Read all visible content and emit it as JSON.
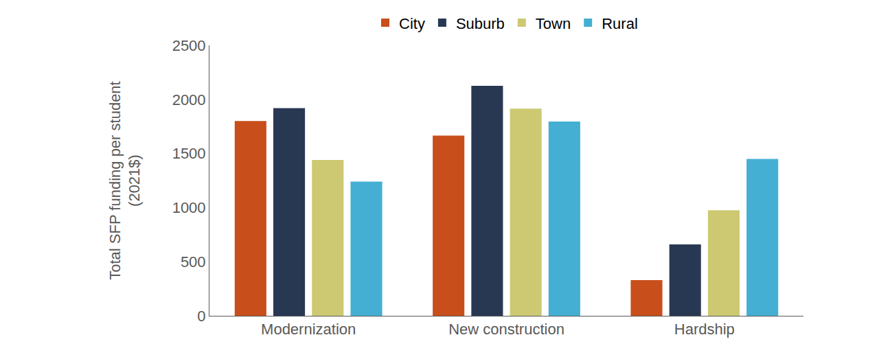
{
  "chart_data": {
    "type": "bar",
    "ylabel": "Total SFP funding per student (2021$)",
    "categories": [
      "Modernization",
      "New construction",
      "Hardship"
    ],
    "series": [
      {
        "name": "City",
        "color": "#c84e1b",
        "values": [
          1800,
          1665,
          330
        ]
      },
      {
        "name": "Suburb",
        "color": "#293852",
        "values": [
          1920,
          2125,
          660
        ]
      },
      {
        "name": "Town",
        "color": "#cdc973",
        "values": [
          1440,
          1915,
          975
        ]
      },
      {
        "name": "Rural",
        "color": "#44afd2",
        "values": [
          1240,
          1795,
          1450
        ]
      }
    ],
    "ylim": [
      0,
      2500
    ],
    "yticks": [
      0,
      500,
      1000,
      1500,
      2000,
      2500
    ],
    "grid": false,
    "legend": "top"
  }
}
